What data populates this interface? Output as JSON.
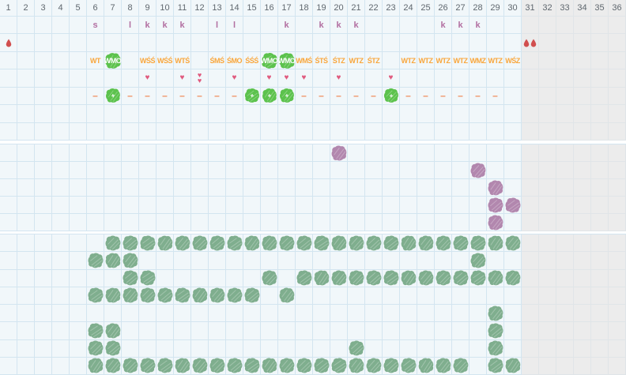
{
  "grid": {
    "columns": 36,
    "gray_from_column": 31,
    "header_numbers": [
      1,
      2,
      3,
      4,
      5,
      6,
      7,
      8,
      9,
      10,
      11,
      12,
      13,
      14,
      15,
      16,
      17,
      18,
      19,
      20,
      21,
      22,
      23,
      24,
      25,
      26,
      27,
      28,
      29,
      30,
      31,
      32,
      33,
      34,
      35,
      36
    ]
  },
  "glyphs": {
    "heart": "♥",
    "dash": "–",
    "plus": "+"
  },
  "colors": {
    "cell_bg": "#f1f7fa",
    "cell_line": "#d3e5f0",
    "gray_bg": "#ececec",
    "gray_line": "#e0e5e8",
    "header_text": "#5f676e",
    "letter": "#b26fa1",
    "code": "#f9a63b",
    "code_on_blob": "#ffffff",
    "heart": "#e05a7e",
    "dash": "#ef8a58",
    "drop": "#d14f4f",
    "blob_green": "#5cc24d",
    "blob_purple": "#b287ae",
    "blob_sage": "#7fae8e"
  },
  "section1": {
    "row_order": [
      "header",
      "letters",
      "drops",
      "codes",
      "hearts",
      "status",
      "empty",
      "empty"
    ],
    "letters": {
      "6": "s",
      "8": "l",
      "9": "k",
      "10": "k",
      "11": "k",
      "13": "l",
      "14": "l",
      "17": "k",
      "19": "k",
      "20": "k",
      "21": "k",
      "26": "k",
      "27": "k",
      "28": "k"
    },
    "drops": {
      "1": 1,
      "31": 2
    },
    "codes": {
      "6": "WT",
      "7": "WMO",
      "9": "WŚŚ",
      "10": "WŚŚ",
      "11": "WTŚ",
      "13": "ŚMŚ",
      "14": "ŚMO",
      "15": "ŚŚŚ",
      "16": "WMO",
      "17": "WMO",
      "18": "WMŚ",
      "19": "ŚTŚ",
      "20": "ŚTZ",
      "21": "WTZ",
      "22": "ŚTZ",
      "24": "WTZ",
      "25": "WTZ",
      "26": "WTZ",
      "27": "WTZ",
      "28": "WMZ",
      "29": "WTZ",
      "30": "WŚZ"
    },
    "code_blob_columns": [
      7,
      16,
      17
    ],
    "hearts": {
      "9": 1,
      "11": 1,
      "12": 2,
      "14": 1,
      "16": 1,
      "17": 1,
      "18": 1,
      "20": 1,
      "23": 1
    },
    "status_dashes": [
      6,
      8,
      9,
      10,
      11,
      12,
      13,
      14,
      18,
      19,
      20,
      21,
      22,
      24,
      25,
      26,
      27,
      28,
      29
    ],
    "status_blobs": [
      7,
      15,
      16,
      17,
      23
    ]
  },
  "section2": {
    "rows": 5,
    "blob_rows": [
      [
        20
      ],
      [
        28
      ],
      [
        29
      ],
      [
        29,
        30
      ],
      [
        29
      ]
    ]
  },
  "section3": {
    "rows": 8,
    "blob_rows": [
      [
        7,
        8,
        9,
        10,
        11,
        12,
        13,
        14,
        15,
        16,
        17,
        18,
        19,
        20,
        21,
        22,
        23,
        24,
        25,
        26,
        27,
        28,
        29,
        30
      ],
      [
        6,
        7,
        8,
        28
      ],
      [
        8,
        9,
        16,
        18,
        19,
        20,
        21,
        22,
        23,
        24,
        25,
        26,
        27,
        28,
        29,
        30
      ],
      [
        6,
        7,
        8,
        9,
        10,
        11,
        12,
        13,
        14,
        15,
        17
      ],
      [
        29
      ],
      [
        6,
        7,
        29
      ],
      [
        6,
        7,
        21,
        29
      ],
      [
        6,
        7,
        8,
        9,
        10,
        11,
        12,
        13,
        14,
        15,
        16,
        17,
        18,
        19,
        20,
        21,
        22,
        23,
        24,
        25,
        26,
        27,
        29,
        30
      ]
    ]
  }
}
